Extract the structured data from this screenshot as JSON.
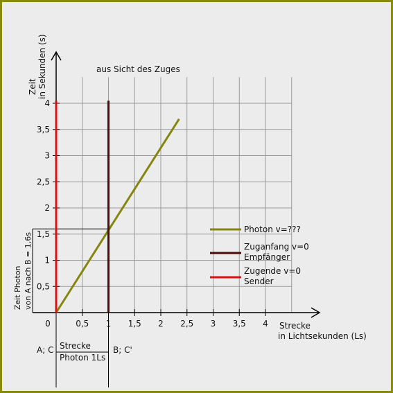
{
  "chart_data": {
    "type": "line",
    "title": "aus Sicht des Zuges",
    "ylabel": [
      "Zeit",
      "in Sekunden (s)"
    ],
    "xlabel": [
      "Strecke",
      "in Lichtsekunden (Ls)"
    ],
    "xlim": [
      0,
      4.5
    ],
    "ylim": [
      0,
      4.5
    ],
    "x_ticks": [
      {
        "v": 0,
        "label": "0"
      },
      {
        "v": 0.5,
        "label": "0,5"
      },
      {
        "v": 1,
        "label": "1"
      },
      {
        "v": 1.5,
        "label": "1,5"
      },
      {
        "v": 2,
        "label": "2"
      },
      {
        "v": 2.5,
        "label": "2,5"
      },
      {
        "v": 3,
        "label": "3"
      },
      {
        "v": 3.5,
        "label": "3,5"
      },
      {
        "v": 4,
        "label": "4"
      }
    ],
    "y_ticks": [
      {
        "v": 0.5,
        "label": "0,5"
      },
      {
        "v": 1,
        "label": "1"
      },
      {
        "v": 1.5,
        "label": "1,5"
      },
      {
        "v": 2,
        "label": "2"
      },
      {
        "v": 2.5,
        "label": "2,5"
      },
      {
        "v": 3,
        "label": "3"
      },
      {
        "v": 3.5,
        "label": "3,5"
      },
      {
        "v": 4,
        "label": "4"
      }
    ],
    "grid": true,
    "legend_position": "right",
    "series": [
      {
        "name": [
          "Photon v=???"
        ],
        "color": "#858510",
        "points": [
          [
            0,
            0
          ],
          [
            2.35,
            3.7
          ]
        ]
      },
      {
        "name": [
          "Zuganfang v=0",
          "Empfänger"
        ],
        "color": "#4a0a0a",
        "points": [
          [
            1,
            0
          ],
          [
            1,
            4.05
          ]
        ]
      },
      {
        "name": [
          "Zugende v=0",
          "Sender"
        ],
        "color": "#dd1111",
        "points": [
          [
            0,
            0
          ],
          [
            0,
            4.05
          ]
        ]
      }
    ],
    "annotations": {
      "left_bracket": {
        "y_from": 0,
        "y_to": 1.6,
        "text": [
          "Zeit Photon",
          "von A nach B = 1,6s"
        ]
      },
      "bottom_bracket": {
        "x_from": 0,
        "x_to": 1,
        "left_text": "A; C",
        "right_text": "B; C'",
        "above": "Strecke",
        "below": "Photon 1Ls"
      }
    }
  }
}
